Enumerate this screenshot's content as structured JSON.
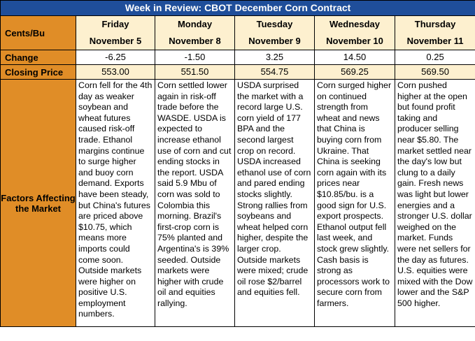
{
  "title": "Week in Review: CBOT December Corn Contract",
  "row_labels": {
    "units": "Cents/Bu",
    "change": "Change",
    "closing": "Closing Price",
    "factors": "Factors Affecting the Market"
  },
  "days": [
    {
      "weekday": "Friday",
      "date": "November 5",
      "change": "-6.25",
      "close": "553.00",
      "notes": "Corn fell for the 4th day as weaker soybean and wheat futures caused risk-off trade. Ethanol margins continue to surge higher and buoy corn demand. Exports have been steady, but China's futures are priced above $10.75, which means more imports could come soon. Outside markets were higher on positive U.S. employment numbers."
    },
    {
      "weekday": "Monday",
      "date": "November 8",
      "change": "-1.50",
      "close": "551.50",
      "notes": "Corn settled lower again in risk-off trade before the WASDE. USDA is expected to increase ethanol use of corn and cut ending stocks in the report. USDA said 5.9 Mbu of corn was sold to Colombia this morning. Brazil's first-crop corn is 75% planted and Argentina's is 39% seeded. Outside markets were higher with crude oil and equities rallying."
    },
    {
      "weekday": "Tuesday",
      "date": "November 9",
      "change": "3.25",
      "close": "554.75",
      "notes": "USDA surprised the market with a record large U.S. corn yield of 177 BPA and the second largest crop on record. USDA increased ethanol use of corn and pared ending stocks slightly. Strong rallies from soybeans and wheat helped corn higher, despite the larger crop. Outside markets were mixed; crude oil rose $2/barrel and equities fell."
    },
    {
      "weekday": "Wednesday",
      "date": "November 10",
      "change": "14.50",
      "close": "569.25",
      "notes": "Corn surged higher on continued strength from wheat and news that China is buying corn from Ukraine. That China is seeking corn again with its prices near $10.85/bu. is a good sign for U.S. export prospects. Ethanol output fell last week, and stock grew slightly. Cash basis is strong as processors work to secure corn from farmers."
    },
    {
      "weekday": "Thursday",
      "date": "November 11",
      "change": "0.25",
      "close": "569.50",
      "notes": "Corn pushed higher at the open but found profit taking and producer selling near $5.80. The market settled near the day's low but clung to a daily gain. Fresh news was light but lower energies and a stronger U.S. dollar weighed on the market. Funds were net sellers for the day as futures. U.S. equities were mixed with the Dow lower and the S&P 500 higher."
    }
  ]
}
